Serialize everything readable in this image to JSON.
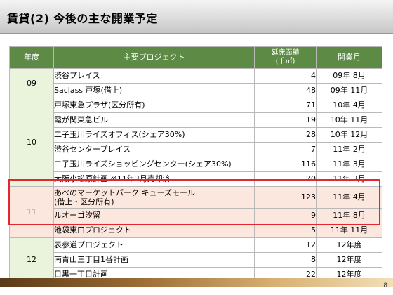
{
  "page": {
    "title": "賃貸(2) 今後の主な開業予定",
    "page_number": "8"
  },
  "table": {
    "headers": {
      "year": "年度",
      "project": "主要プロジェクト",
      "area_line1": "延床面積",
      "area_line2": "(千㎡)",
      "opening": "開業月"
    },
    "groups": [
      {
        "year": "09",
        "rows": [
          {
            "project": "渋谷プレイス",
            "area": "4",
            "opening": "09年  8月"
          },
          {
            "project": "Saclass 戸塚(借上)",
            "area": "48",
            "opening": "09年 11月"
          }
        ]
      },
      {
        "year": "10",
        "rows": [
          {
            "project": "戸塚東急プラザ(区分所有)",
            "area": "71",
            "opening": "10年  4月"
          },
          {
            "project": "霞が関東急ビル",
            "area": "19",
            "opening": "10年 11月"
          },
          {
            "project": "二子玉川ライズオフィス(シェア30%)",
            "area": "28",
            "opening": "10年 12月"
          },
          {
            "project": "渋谷センタープレイス",
            "area": "7",
            "opening": "11年  2月"
          },
          {
            "project": "二子玉川ライズショッピングセンター(シェア30%)",
            "area": "116",
            "opening": "11年  3月"
          },
          {
            "project": "大阪小松原計画 ※11年3月売却済",
            "area": "20",
            "opening": "11年  3月"
          }
        ]
      },
      {
        "year": "11",
        "highlight": true,
        "rows": [
          {
            "project_line1": "あべのマーケットパーク キューズモール",
            "project_line2": "(借上・区分所有)",
            "area": "123",
            "opening": "11年  4月"
          },
          {
            "project": "ルオーゴ汐留",
            "area": "9",
            "opening": "11年  8月"
          },
          {
            "project": "池袋東口プロジェクト",
            "area": "5",
            "opening": "11年 11月"
          }
        ]
      },
      {
        "year": "12",
        "rows": [
          {
            "project": "表参道プロジェクト",
            "area": "12",
            "opening": "12年度"
          },
          {
            "project": "南青山三丁目1番計画",
            "area": "8",
            "opening": "12年度"
          },
          {
            "project": "目黒一丁目計画",
            "area": "22",
            "opening": "12年度"
          }
        ]
      }
    ]
  },
  "colors": {
    "header_green": "#5d8a45",
    "year_cell": "#eaf3dc",
    "highlight_fill": "#fbe7de",
    "highlight_border": "#e0282e"
  }
}
